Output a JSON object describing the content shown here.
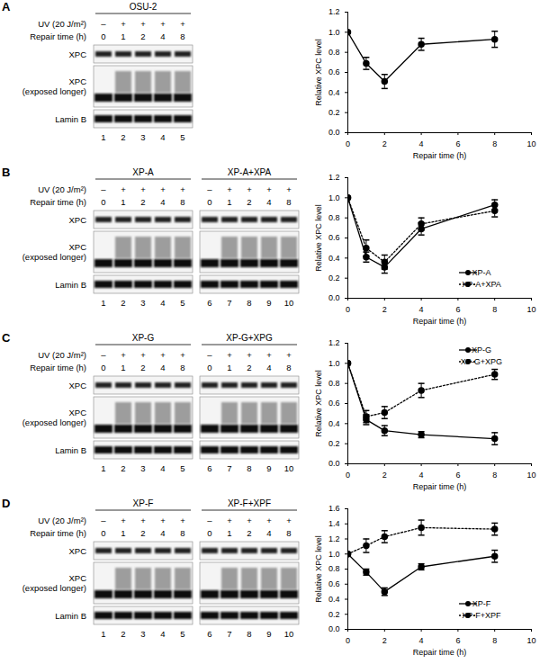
{
  "chart_data": [
    {
      "type": "line",
      "xlabel": "Repair time (h)",
      "ylabel": "Relative XPC level",
      "x": [
        0,
        1,
        2,
        4,
        8
      ],
      "xlim": [
        0,
        10
      ],
      "xticks": [
        0,
        2,
        4,
        6,
        8,
        10
      ],
      "ylim": [
        0,
        1.2
      ],
      "yticks": [
        {
          "value": 0,
          "label": "0.0"
        },
        {
          "value": 0.2,
          "label": "0.2"
        },
        {
          "value": 0.4,
          "label": "0.4"
        },
        {
          "value": 0.6,
          "label": "0.6"
        },
        {
          "value": 0.8,
          "label": "0.8"
        },
        {
          "value": 1.0,
          "label": "1.0"
        },
        {
          "value": 1.2,
          "label": "1.2"
        }
      ],
      "series": [
        {
          "color": "#000000",
          "line_style": "solid",
          "marker": "circle",
          "values": [
            1.0,
            0.69,
            0.51,
            0.88,
            0.93
          ],
          "errors": [
            0,
            0.06,
            0.07,
            0.06,
            0.08
          ]
        }
      ]
    },
    {
      "type": "line",
      "xlabel": "Repair time (h)",
      "ylabel": "Relative XPC level",
      "legend": "lower right",
      "x": [
        0,
        1,
        2,
        4,
        8
      ],
      "xlim": [
        0,
        10
      ],
      "xticks": [
        0,
        2,
        4,
        6,
        8,
        10
      ],
      "ylim": [
        0,
        1.2
      ],
      "yticks": [
        {
          "value": 0,
          "label": "0.0"
        },
        {
          "value": 0.2,
          "label": "0.2"
        },
        {
          "value": 0.4,
          "label": "0.4"
        },
        {
          "value": 0.6,
          "label": "0.6"
        },
        {
          "value": 0.8,
          "label": "0.8"
        },
        {
          "value": 1.0,
          "label": "1.0"
        },
        {
          "value": 1.2,
          "label": "1.2"
        }
      ],
      "series": [
        {
          "name": "XP-A",
          "color": "#000000",
          "line_style": "solid",
          "marker": "circle",
          "values": [
            1.0,
            0.41,
            0.31,
            0.69,
            0.93
          ],
          "errors": [
            0,
            0.05,
            0.06,
            0.06,
            0.05
          ]
        },
        {
          "name": "XP-A+XPA",
          "color": "#000000",
          "line_style": "dotted",
          "marker": "circle",
          "values": [
            1.0,
            0.5,
            0.36,
            0.74,
            0.87
          ],
          "errors": [
            0,
            0.08,
            0.07,
            0.06,
            0.06
          ]
        }
      ]
    },
    {
      "type": "line",
      "xlabel": "Repair time (h)",
      "ylabel": "Relative XPC level",
      "legend": "upper right",
      "x": [
        0,
        1,
        2,
        4,
        8
      ],
      "xlim": [
        0,
        10
      ],
      "xticks": [
        0,
        2,
        4,
        6,
        8,
        10
      ],
      "ylim": [
        0,
        1.2
      ],
      "yticks": [
        {
          "value": 0,
          "label": "0.0"
        },
        {
          "value": 0.2,
          "label": "0.2"
        },
        {
          "value": 0.4,
          "label": "0.4"
        },
        {
          "value": 0.6,
          "label": "0.6"
        },
        {
          "value": 0.8,
          "label": "0.8"
        },
        {
          "value": 1.0,
          "label": "1.0"
        },
        {
          "value": 1.2,
          "label": "1.2"
        }
      ],
      "series": [
        {
          "name": "XP-G",
          "color": "#000000",
          "line_style": "solid",
          "marker": "circle",
          "values": [
            1.0,
            0.44,
            0.33,
            0.29,
            0.25
          ],
          "errors": [
            0,
            0.05,
            0.05,
            0.03,
            0.06
          ]
        },
        {
          "name": "XP-G+XPG",
          "color": "#000000",
          "line_style": "dotted",
          "marker": "circle",
          "values": [
            1.0,
            0.47,
            0.51,
            0.73,
            0.89
          ],
          "errors": [
            0,
            0.06,
            0.06,
            0.07,
            0.05
          ]
        }
      ]
    },
    {
      "type": "line",
      "xlabel": "Repair time (h)",
      "ylabel": "Relative XPC level",
      "legend": "lower right",
      "x": [
        0,
        1,
        2,
        4,
        8
      ],
      "xlim": [
        0,
        10
      ],
      "xticks": [
        0,
        2,
        4,
        6,
        8,
        10
      ],
      "ylim": [
        0,
        1.6
      ],
      "yticks": [
        {
          "value": 0,
          "label": "0.0"
        },
        {
          "value": 0.2,
          "label": "0.2"
        },
        {
          "value": 0.4,
          "label": "0.4"
        },
        {
          "value": 0.6,
          "label": "0.6"
        },
        {
          "value": 0.8,
          "label": "0.8"
        },
        {
          "value": 1.0,
          "label": "1.0"
        },
        {
          "value": 1.2,
          "label": "1.2"
        },
        {
          "value": 1.4,
          "label": "1.4"
        },
        {
          "value": 1.6,
          "label": "1.6"
        }
      ],
      "series": [
        {
          "name": "XP-F",
          "color": "#000000",
          "line_style": "solid",
          "marker": "circle",
          "values": [
            1.0,
            0.76,
            0.5,
            0.83,
            0.97
          ],
          "errors": [
            0,
            0.04,
            0.05,
            0.04,
            0.08
          ]
        },
        {
          "name": "XP-F+XPF",
          "color": "#000000",
          "line_style": "dotted",
          "marker": "circle",
          "values": [
            1.0,
            1.11,
            1.23,
            1.35,
            1.33
          ],
          "errors": [
            0,
            0.09,
            0.08,
            0.1,
            0.08
          ]
        }
      ]
    }
  ],
  "blots": [
    {
      "panel": "A",
      "uv_label": "UV (20 J/m²)",
      "repair_label": "Repair time (h)",
      "rows": [
        [
          "XPC"
        ],
        [
          "XPC",
          "(exposed longer)"
        ],
        [
          "Lamin B"
        ]
      ],
      "groups": [
        {
          "name": "OSU-2",
          "uv": [
            "–",
            "+",
            "+",
            "+",
            "+"
          ],
          "repair": [
            0,
            1,
            2,
            4,
            8
          ],
          "lanes": [
            1,
            2,
            3,
            4,
            5
          ]
        }
      ]
    },
    {
      "panel": "B",
      "uv_label": "UV (20 J/m²)",
      "repair_label": "Repair time (h)",
      "rows": [
        [
          "XPC"
        ],
        [
          "XPC",
          "(exposed longer)"
        ],
        [
          "Lamin B"
        ]
      ],
      "groups": [
        {
          "name": "XP-A",
          "uv": [
            "–",
            "+",
            "+",
            "+",
            "+"
          ],
          "repair": [
            0,
            1,
            2,
            4,
            8
          ],
          "lanes": [
            1,
            2,
            3,
            4,
            5
          ]
        },
        {
          "name": "XP-A+XPA",
          "uv": [
            "–",
            "+",
            "+",
            "+",
            "+"
          ],
          "repair": [
            0,
            1,
            2,
            4,
            8
          ],
          "lanes": [
            6,
            7,
            8,
            9,
            10
          ]
        }
      ]
    },
    {
      "panel": "C",
      "uv_label": "UV (20 J/m²)",
      "repair_label": "Repair time (h)",
      "rows": [
        [
          "XPC"
        ],
        [
          "XPC",
          "(exposed longer)"
        ],
        [
          "Lamin B"
        ]
      ],
      "groups": [
        {
          "name": "XP-G",
          "uv": [
            "–",
            "+",
            "+",
            "+",
            "+"
          ],
          "repair": [
            0,
            1,
            2,
            4,
            8
          ],
          "lanes": [
            1,
            2,
            3,
            4,
            5
          ]
        },
        {
          "name": "XP-G+XPG",
          "uv": [
            "–",
            "+",
            "+",
            "+",
            "+"
          ],
          "repair": [
            0,
            1,
            2,
            4,
            8
          ],
          "lanes": [
            6,
            7,
            8,
            9,
            10
          ]
        }
      ]
    },
    {
      "panel": "D",
      "uv_label": "UV (20 J/m²)",
      "repair_label": "Repair time (h)",
      "rows": [
        [
          "XPC"
        ],
        [
          "XPC",
          "(exposed longer)"
        ],
        [
          "Lamin B"
        ]
      ],
      "groups": [
        {
          "name": "XP-F",
          "uv": [
            "–",
            "+",
            "+",
            "+",
            "+"
          ],
          "repair": [
            0,
            1,
            2,
            4,
            8
          ],
          "lanes": [
            1,
            2,
            3,
            4,
            5
          ]
        },
        {
          "name": "XP-F+XPF",
          "uv": [
            "–",
            "+",
            "+",
            "+",
            "+"
          ],
          "repair": [
            0,
            1,
            2,
            4,
            8
          ],
          "lanes": [
            6,
            7,
            8,
            9,
            10
          ]
        }
      ]
    }
  ]
}
